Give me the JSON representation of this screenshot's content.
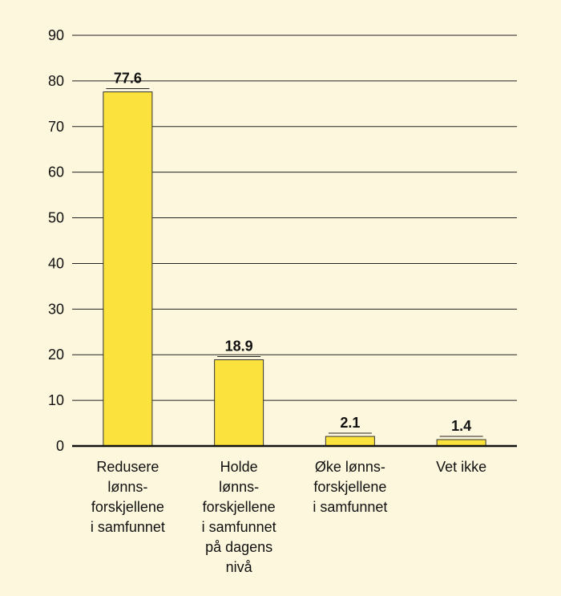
{
  "chart_data": {
    "type": "bar",
    "categories": [
      [
        "Redusere",
        "lønns-",
        "forskjellene",
        "i samfunnet"
      ],
      [
        "Holde",
        "lønns-",
        "forskjellene",
        "i samfunnet",
        "på dagens",
        "nivå"
      ],
      [
        "Øke lønns-",
        "forskjellene",
        "i samfunnet"
      ],
      [
        "Vet ikke"
      ]
    ],
    "values": [
      77.6,
      18.9,
      2.1,
      1.4
    ],
    "value_labels": [
      "77.6",
      "18.9",
      "2.1",
      "1.4"
    ],
    "yticks": [
      0,
      10,
      20,
      30,
      40,
      50,
      60,
      70,
      80,
      90
    ],
    "ylim": [
      0,
      90
    ],
    "grid": true,
    "bar_color": "#fbe23d",
    "bar_edge_color": "#333333",
    "background": "#fdf7dd"
  }
}
